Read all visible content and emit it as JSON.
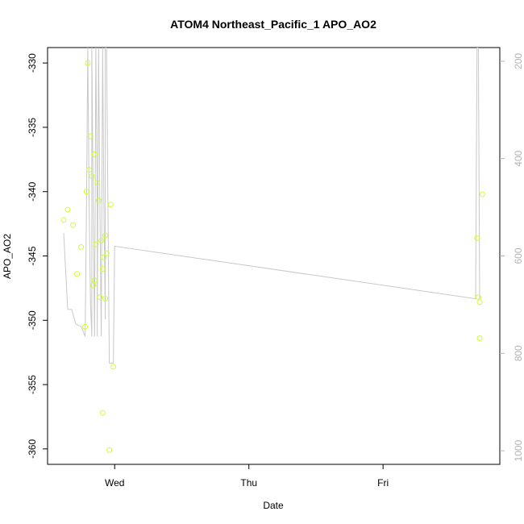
{
  "chart_data": {
    "type": "scatter",
    "title": "ATOM4 Northeast_Pacific_1 APO_AO2",
    "xlabel": "Date",
    "ylabel": "APO_AO2",
    "x_tick_labels": [
      "Wed",
      "Thu",
      "Fri"
    ],
    "x_tick_days": [
      0,
      1,
      2
    ],
    "xlim_days": [
      -0.5,
      2.87
    ],
    "ylim": [
      -361.2,
      -328.8
    ],
    "y_ticks": [
      -330,
      -335,
      -340,
      -345,
      -350,
      -355,
      -360
    ],
    "right_axis": {
      "ylim": [
        1028,
        172
      ],
      "ticks": [
        200,
        400,
        600,
        800,
        1000
      ],
      "color": "#b3b3b3"
    },
    "grid": false,
    "legend": "none",
    "colors": {
      "points": "#ccff33",
      "line": "#c8c8c8",
      "axes": "#000000",
      "right_axis": "#b3b3b3"
    },
    "series": [
      {
        "type": "scatter",
        "x_days": [
          -0.38,
          -0.35,
          -0.31,
          -0.28,
          -0.25,
          -0.22,
          -0.21,
          -0.2,
          -0.19,
          -0.18,
          -0.17,
          -0.16,
          -0.15,
          -0.15,
          -0.14,
          -0.13,
          -0.12,
          -0.11,
          -0.1,
          -0.09,
          -0.09,
          -0.08,
          -0.07,
          -0.07,
          -0.06,
          -0.04,
          -0.03,
          -0.01,
          2.7,
          2.71,
          2.72,
          2.72,
          2.74
        ],
        "y": [
          -342.2,
          -341.4,
          -342.6,
          -346.4,
          -344.3,
          -350.5,
          -340.0,
          -330.0,
          -338.3,
          -335.7,
          -338.8,
          -347.3,
          -337.1,
          -346.9,
          -344.1,
          -339.3,
          -340.7,
          -348.2,
          -343.8,
          -357.2,
          -346.0,
          -345.1,
          -343.4,
          -348.3,
          -344.8,
          -360.1,
          -341.0,
          -353.6,
          -343.6,
          -348.2,
          -348.6,
          -351.4,
          -340.2
        ]
      },
      {
        "type": "line",
        "x_days": [
          -0.38,
          -0.35,
          -0.32,
          -0.29,
          -0.25,
          -0.22,
          -0.21,
          -0.2,
          -0.2,
          -0.19,
          -0.18,
          -0.17,
          -0.17,
          -0.16,
          -0.15,
          -0.14,
          -0.13,
          -0.13,
          -0.12,
          -0.11,
          -0.1,
          -0.09,
          -0.08,
          -0.07,
          -0.07,
          -0.06,
          -0.05,
          -0.04,
          -0.03,
          -0.02,
          -0.01,
          0.0,
          0.0,
          2.69,
          2.7,
          2.71,
          2.72,
          2.73
        ],
        "right_values": [
          553,
          710,
          710,
          740,
          745,
          765,
          500,
          172,
          172,
          500,
          700,
          765,
          172,
          500,
          765,
          172,
          500,
          765,
          172,
          500,
          765,
          172,
          500,
          730,
          172,
          172,
          500,
          820,
          820,
          820,
          820,
          580,
          580,
          688,
          172,
          172,
          688,
          688
        ]
      }
    ]
  }
}
